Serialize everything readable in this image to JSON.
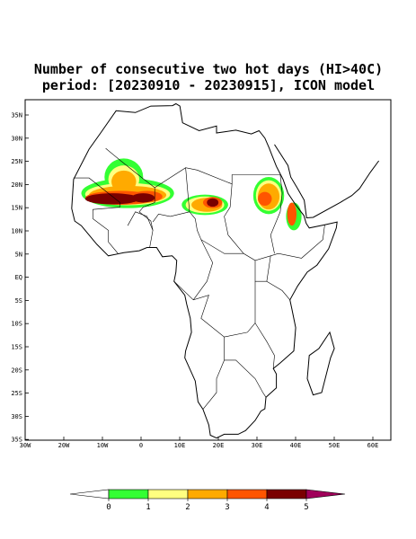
{
  "title": [
    "Number of consecutive two hot days (HI>40C)",
    "period: [20230910 - 20230915], ICON model"
  ],
  "lat_labels": [
    "35N",
    "30N",
    "25N",
    "20N",
    "15N",
    "10N",
    "5N",
    "EQ",
    "5S",
    "10S",
    "15S",
    "20S",
    "25S",
    "30S",
    "35S"
  ],
  "lon_labels": [
    "30W",
    "20W",
    "10W",
    "0",
    "10E",
    "20E",
    "30E",
    "40E",
    "50E",
    "60E"
  ],
  "colorbar": {
    "ticks": [
      0,
      1,
      2,
      3,
      4,
      5
    ],
    "colors": [
      "#ffffff",
      "#33ff33",
      "#ffff80",
      "#ffaa00",
      "#ff5500",
      "#7a0000",
      "#a0005a"
    ]
  }
}
